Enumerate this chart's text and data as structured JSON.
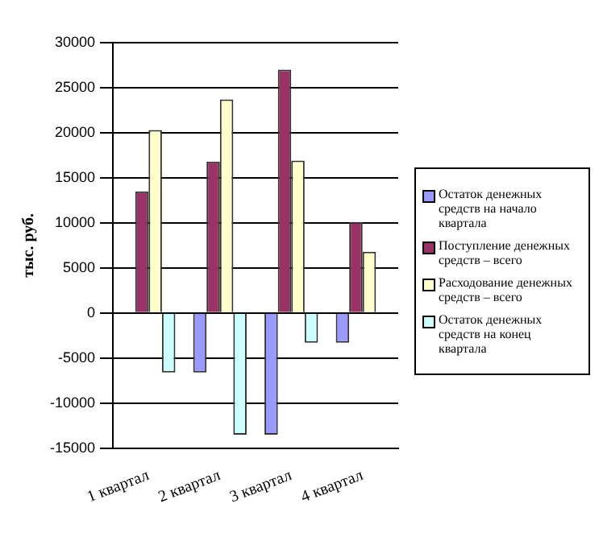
{
  "chart_data": {
    "type": "bar",
    "ylabel": "тыс. руб.",
    "categories": [
      "1 квартал",
      "2 квартал",
      "3 квартал",
      "4 квартал"
    ],
    "series": [
      {
        "name": "Остаток денежных средств на начало квартала",
        "color": "#9999ff",
        "values": [
          0,
          -6600,
          -13500,
          -3300
        ]
      },
      {
        "name": "Поступление денежных средств – всего",
        "color": "#993366",
        "values": [
          13500,
          16800,
          27000,
          10100
        ]
      },
      {
        "name": "Расходование денежных средств – всего",
        "color": "#ffffcc",
        "values": [
          20300,
          23700,
          16900,
          6800
        ]
      },
      {
        "name": "Остаток денежных средств на конец квартала",
        "color": "#ccffff",
        "values": [
          -6600,
          -13500,
          -3300,
          0
        ]
      }
    ],
    "ylim": [
      -15000,
      30000
    ],
    "yticks": [
      -15000,
      -10000,
      -5000,
      0,
      5000,
      10000,
      15000,
      20000,
      25000,
      30000
    ],
    "grid": "y",
    "legend": "right"
  }
}
